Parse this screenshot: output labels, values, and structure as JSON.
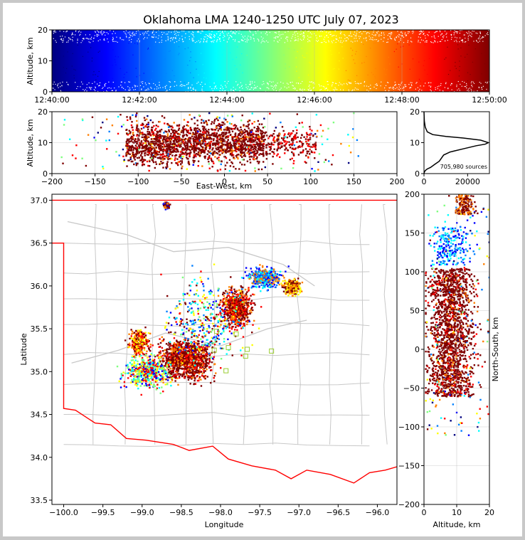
{
  "title": "Oklahoma LMA 1240-1250 UTC July 07, 2023",
  "colors": {
    "colormap": [
      "#00007f",
      "#0000ff",
      "#007fff",
      "#00ffff",
      "#7fff7f",
      "#ffff00",
      "#ff7f00",
      "#ff0000",
      "#7f0000"
    ],
    "state_border": "#ff0000",
    "county_lines": "#c8c8c8",
    "networks_markers": "#9acd32",
    "frame_background": "#c8c8c8"
  },
  "chart_data": [
    {
      "id": "time_altitude",
      "type": "scatter",
      "xlabel": "",
      "ylabel": "Altitude, km",
      "x_ticks": [
        "12:40:00",
        "12:42:00",
        "12:44:00",
        "12:46:00",
        "12:48:00",
        "12:50:00"
      ],
      "y_ticks": [
        "0",
        "10",
        "20"
      ],
      "xlim": [
        "12:40:00",
        "12:50:00"
      ],
      "ylim": [
        0,
        20
      ],
      "grid": true,
      "color_by": "time"
    },
    {
      "id": "eastwest_altitude",
      "type": "scatter",
      "xlabel": "East-West, km",
      "ylabel": "Altitude, km",
      "x_ticks": [
        "−200",
        "−150",
        "−100",
        "−50",
        "0",
        "50",
        "100",
        "150",
        "200"
      ],
      "y_ticks": [
        "0",
        "10",
        "20"
      ],
      "xlim": [
        -200,
        200
      ],
      "ylim": [
        0,
        20
      ],
      "grid": true,
      "source_extent_x": [
        -140,
        110
      ]
    },
    {
      "id": "altitude_histogram",
      "type": "line",
      "x_ticks": [
        "0",
        "20000"
      ],
      "y_ticks": [
        "0",
        "10",
        "20"
      ],
      "xlim": [
        0,
        30000
      ],
      "ylim": [
        0,
        20
      ],
      "annotation": "705,980 sources",
      "x": [
        0,
        200,
        600,
        1500,
        3000,
        5000,
        7000,
        8000,
        9000,
        12000,
        18000,
        24000,
        28000,
        29500,
        26000,
        18000,
        10000,
        4000,
        1500,
        600,
        150,
        0
      ],
      "y": [
        0,
        0.5,
        1,
        1.5,
        2,
        3,
        4,
        5,
        6,
        7,
        8,
        9,
        9.5,
        10,
        10.8,
        11.5,
        12,
        12.6,
        13.5,
        15,
        17,
        20
      ]
    },
    {
      "id": "plan_view",
      "type": "scatter",
      "xlabel": "Longitude",
      "ylabel": "Latitude",
      "x_ticks": [
        "−100.0",
        "−99.5",
        "−99.0",
        "−98.5",
        "−98.0",
        "−97.5",
        "−97.0",
        "−96.5",
        "−96.0"
      ],
      "y_ticks": [
        "33.5",
        "34.0",
        "34.5",
        "35.0",
        "35.5",
        "36.0",
        "36.5",
        "37.0"
      ],
      "xlim": [
        -100.15,
        -95.75
      ],
      "ylim": [
        33.45,
        37.07
      ],
      "grid": true,
      "station_markers": [
        [
          -98.05,
          35.47
        ],
        [
          -97.8,
          35.44
        ],
        [
          -97.9,
          35.28
        ],
        [
          -97.66,
          35.26
        ],
        [
          -98.08,
          35.25
        ],
        [
          -97.35,
          35.24
        ],
        [
          -97.93,
          35.01
        ],
        [
          -97.68,
          35.18
        ]
      ]
    },
    {
      "id": "northsouth_altitude",
      "type": "scatter",
      "xlabel": "Altitude, km",
      "ylabel": "North-South, km",
      "x_ticks": [
        "0",
        "10",
        "20"
      ],
      "y_ticks": [
        "−200",
        "−150",
        "−100",
        "−50",
        "0",
        "50",
        "100",
        "150",
        "200"
      ],
      "xlim": [
        0,
        20
      ],
      "ylim": [
        -200,
        200
      ],
      "grid": true,
      "source_extent_y": [
        -80,
        200
      ]
    }
  ]
}
